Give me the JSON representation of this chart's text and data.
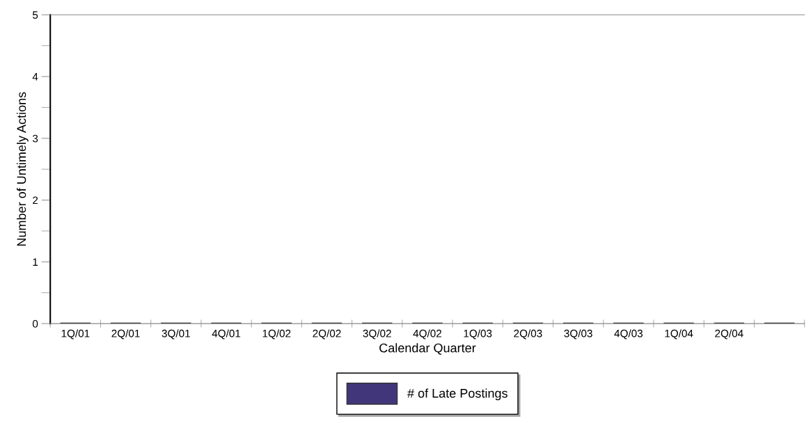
{
  "chart_data": {
    "type": "bar",
    "xlabel": "Calendar Quarter",
    "ylabel": "Number of Untimely Actions",
    "categories": [
      "1Q/01",
      "2Q/01",
      "3Q/01",
      "4Q/01",
      "1Q/02",
      "2Q/02",
      "3Q/02",
      "4Q/02",
      "1Q/03",
      "2Q/03",
      "3Q/03",
      "4Q/03",
      "1Q/04",
      "2Q/04",
      null
    ],
    "series": [
      {
        "name": "# of Late Postings",
        "color": "#42367a",
        "values": [
          0,
          0,
          0,
          0,
          0,
          0,
          0,
          0,
          0,
          0,
          0,
          0,
          0,
          0,
          0
        ]
      }
    ],
    "ylim": [
      0,
      5
    ],
    "yticks": [
      0,
      1,
      2,
      3,
      4,
      5
    ],
    "grid": false,
    "legend": "bottom"
  }
}
